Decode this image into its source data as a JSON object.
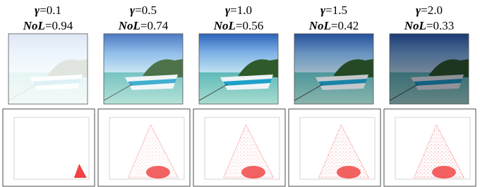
{
  "columns": [
    {
      "gamma_symbol": "γ",
      "gamma_value": "=0.1",
      "nol_symbol": "NoL",
      "nol_value": "=0.94"
    },
    {
      "gamma_symbol": "γ",
      "gamma_value": "=0.5",
      "nol_symbol": "NoL",
      "nol_value": "=0.74"
    },
    {
      "gamma_symbol": "γ",
      "gamma_value": "=1.0",
      "nol_symbol": "NoL",
      "nol_value": "=0.56"
    },
    {
      "gamma_symbol": "γ",
      "gamma_value": "=1.5",
      "nol_symbol": "NoL",
      "nol_value": "=0.42"
    },
    {
      "gamma_symbol": "γ",
      "gamma_value": "=2.0",
      "nol_symbol": "NoL",
      "nol_value": "=0.33"
    }
  ]
}
